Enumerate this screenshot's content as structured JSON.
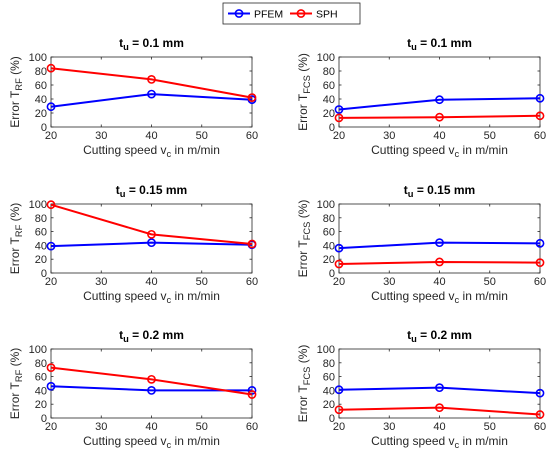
{
  "legend": {
    "entries": [
      {
        "name": "PFEM",
        "color": "#0000ff"
      },
      {
        "name": "SPH",
        "color": "#ff0000"
      }
    ],
    "placement": "top-center"
  },
  "chart_data": [
    {
      "type": "line",
      "title": {
        "main": "t",
        "sub": "u",
        "rest": " = 0.1 mm"
      },
      "xlabel": {
        "main": "Cutting speed v",
        "sub": "c",
        "rest": " in m/min"
      },
      "ylabel": {
        "main": "Error T",
        "sub": "RF",
        "rest": " (%)"
      },
      "x": [
        20,
        40,
        60
      ],
      "xlim": [
        20,
        60
      ],
      "xticks": [
        20,
        30,
        40,
        50,
        60
      ],
      "ylim": [
        0,
        100
      ],
      "yticks": [
        0,
        20,
        40,
        60,
        80,
        100
      ],
      "grid": false,
      "series": [
        {
          "name": "PFEM",
          "values": [
            29,
            47,
            39
          ]
        },
        {
          "name": "SPH",
          "values": [
            84,
            68,
            42
          ]
        }
      ]
    },
    {
      "type": "line",
      "title": {
        "main": "t",
        "sub": "u",
        "rest": " = 0.1 mm"
      },
      "xlabel": {
        "main": "Cutting speed v",
        "sub": "c",
        "rest": " in m/min"
      },
      "ylabel": {
        "main": "Error T",
        "sub": "FCS",
        "rest": " (%)"
      },
      "x": [
        20,
        40,
        60
      ],
      "xlim": [
        20,
        60
      ],
      "xticks": [
        20,
        30,
        40,
        50,
        60
      ],
      "ylim": [
        0,
        100
      ],
      "yticks": [
        0,
        20,
        40,
        60,
        80,
        100
      ],
      "grid": false,
      "series": [
        {
          "name": "PFEM",
          "values": [
            25,
            39,
            41
          ]
        },
        {
          "name": "SPH",
          "values": [
            13,
            14,
            16
          ]
        }
      ]
    },
    {
      "type": "line",
      "title": {
        "main": "t",
        "sub": "u",
        "rest": " = 0.15 mm"
      },
      "xlabel": {
        "main": "Cutting speed v",
        "sub": "c",
        "rest": " in m/min"
      },
      "ylabel": {
        "main": "Error T",
        "sub": "RF",
        "rest": " (%)"
      },
      "x": [
        20,
        40,
        60
      ],
      "xlim": [
        20,
        60
      ],
      "xticks": [
        20,
        30,
        40,
        50,
        60
      ],
      "ylim": [
        0,
        100
      ],
      "yticks": [
        0,
        20,
        40,
        60,
        80,
        100
      ],
      "grid": false,
      "series": [
        {
          "name": "PFEM",
          "values": [
            39,
            44,
            41
          ]
        },
        {
          "name": "SPH",
          "values": [
            99,
            56,
            42
          ]
        }
      ]
    },
    {
      "type": "line",
      "title": {
        "main": "t",
        "sub": "u",
        "rest": " = 0.15 mm"
      },
      "xlabel": {
        "main": "Cutting speed v",
        "sub": "c",
        "rest": " in m/min"
      },
      "ylabel": {
        "main": "Error T",
        "sub": "FCS",
        "rest": " (%)"
      },
      "x": [
        20,
        40,
        60
      ],
      "xlim": [
        20,
        60
      ],
      "xticks": [
        20,
        30,
        40,
        50,
        60
      ],
      "ylim": [
        0,
        100
      ],
      "yticks": [
        0,
        20,
        40,
        60,
        80,
        100
      ],
      "grid": false,
      "series": [
        {
          "name": "PFEM",
          "values": [
            36,
            44,
            43
          ]
        },
        {
          "name": "SPH",
          "values": [
            13,
            16,
            15
          ]
        }
      ]
    },
    {
      "type": "line",
      "title": {
        "main": "t",
        "sub": "u",
        "rest": " = 0.2 mm"
      },
      "xlabel": {
        "main": "Cutting speed v",
        "sub": "c",
        "rest": " in m/min"
      },
      "ylabel": {
        "main": "Error T",
        "sub": "RF",
        "rest": " (%)"
      },
      "x": [
        20,
        40,
        60
      ],
      "xlim": [
        20,
        60
      ],
      "xticks": [
        20,
        30,
        40,
        50,
        60
      ],
      "ylim": [
        0,
        100
      ],
      "yticks": [
        0,
        20,
        40,
        60,
        80,
        100
      ],
      "grid": false,
      "series": [
        {
          "name": "PFEM",
          "values": [
            46,
            40,
            40
          ]
        },
        {
          "name": "SPH",
          "values": [
            73,
            56,
            34
          ]
        }
      ]
    },
    {
      "type": "line",
      "title": {
        "main": "t",
        "sub": "u",
        "rest": " = 0.2 mm"
      },
      "xlabel": {
        "main": "Cutting speed v",
        "sub": "c",
        "rest": " in m/min"
      },
      "ylabel": {
        "main": "Error T",
        "sub": "FCS",
        "rest": " (%)"
      },
      "x": [
        20,
        40,
        60
      ],
      "xlim": [
        20,
        60
      ],
      "xticks": [
        20,
        30,
        40,
        50,
        60
      ],
      "ylim": [
        0,
        100
      ],
      "yticks": [
        0,
        20,
        40,
        60,
        80,
        100
      ],
      "grid": false,
      "series": [
        {
          "name": "PFEM",
          "values": [
            41,
            44,
            36
          ]
        },
        {
          "name": "SPH",
          "values": [
            12,
            15,
            5
          ]
        }
      ]
    }
  ]
}
